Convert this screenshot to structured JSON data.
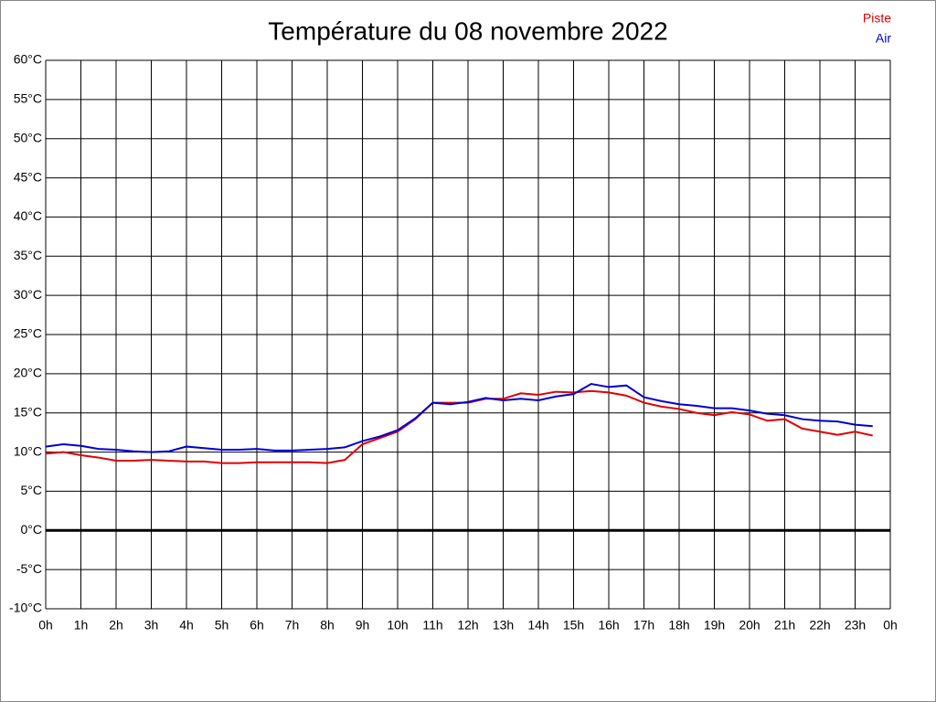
{
  "chart_data": {
    "type": "line",
    "title": "Température du 08 novembre 2022",
    "x": [
      0,
      0.5,
      1,
      1.5,
      2,
      2.5,
      3,
      3.5,
      4,
      4.5,
      5,
      5.5,
      6,
      6.5,
      7,
      7.5,
      8,
      8.5,
      9,
      9.5,
      10,
      10.5,
      11,
      11.5,
      12,
      12.5,
      13,
      13.5,
      14,
      14.5,
      15,
      15.5,
      16,
      16.5,
      17,
      17.5,
      18,
      18.5,
      19,
      19.5,
      20,
      20.5,
      21,
      21.5,
      22,
      22.5,
      23,
      23.5
    ],
    "series": [
      {
        "name": "Piste",
        "color": "#e00000",
        "values": [
          9.8,
          10.0,
          9.6,
          9.3,
          8.9,
          8.9,
          9.0,
          8.9,
          8.8,
          8.8,
          8.6,
          8.6,
          8.7,
          8.7,
          8.7,
          8.7,
          8.6,
          9.0,
          11.0,
          11.8,
          12.6,
          14.2,
          16.3,
          16.3,
          16.3,
          16.8,
          16.8,
          17.5,
          17.3,
          17.7,
          17.6,
          17.8,
          17.6,
          17.2,
          16.3,
          15.8,
          15.5,
          15.0,
          14.7,
          15.1,
          14.8,
          14.0,
          14.2,
          13.0,
          12.6,
          12.2,
          12.6,
          12.1
        ]
      },
      {
        "name": "Air",
        "color": "#0000d0",
        "values": [
          10.7,
          11.0,
          10.8,
          10.4,
          10.3,
          10.1,
          10.0,
          10.1,
          10.7,
          10.5,
          10.3,
          10.3,
          10.4,
          10.2,
          10.2,
          10.3,
          10.4,
          10.6,
          11.4,
          12.0,
          12.8,
          14.3,
          16.3,
          16.1,
          16.4,
          16.9,
          16.6,
          16.8,
          16.6,
          17.1,
          17.4,
          18.7,
          18.3,
          18.5,
          17.0,
          16.5,
          16.1,
          15.9,
          15.6,
          15.6,
          15.3,
          14.9,
          14.7,
          14.2,
          14.0,
          13.9,
          13.5,
          13.3
        ]
      }
    ],
    "xlim": [
      0,
      24
    ],
    "xticks": [
      {
        "value": 0,
        "label": "0h"
      },
      {
        "value": 1,
        "label": "1h"
      },
      {
        "value": 2,
        "label": "2h"
      },
      {
        "value": 3,
        "label": "3h"
      },
      {
        "value": 4,
        "label": "4h"
      },
      {
        "value": 5,
        "label": "5h"
      },
      {
        "value": 6,
        "label": "6h"
      },
      {
        "value": 7,
        "label": "7h"
      },
      {
        "value": 8,
        "label": "8h"
      },
      {
        "value": 9,
        "label": "9h"
      },
      {
        "value": 10,
        "label": "10h"
      },
      {
        "value": 11,
        "label": "11h"
      },
      {
        "value": 12,
        "label": "12h"
      },
      {
        "value": 13,
        "label": "13h"
      },
      {
        "value": 14,
        "label": "14h"
      },
      {
        "value": 15,
        "label": "15h"
      },
      {
        "value": 16,
        "label": "16h"
      },
      {
        "value": 17,
        "label": "17h"
      },
      {
        "value": 18,
        "label": "18h"
      },
      {
        "value": 19,
        "label": "19h"
      },
      {
        "value": 20,
        "label": "20h"
      },
      {
        "value": 21,
        "label": "21h"
      },
      {
        "value": 22,
        "label": "22h"
      },
      {
        "value": 23,
        "label": "23h"
      },
      {
        "value": 24,
        "label": "0h"
      }
    ],
    "ylim": [
      -10,
      60
    ],
    "yticks": [
      {
        "value": -10,
        "label": "-10°C"
      },
      {
        "value": -5,
        "label": "-5°C"
      },
      {
        "value": 0,
        "label": "0°C"
      },
      {
        "value": 5,
        "label": "5°C"
      },
      {
        "value": 10,
        "label": "10°C"
      },
      {
        "value": 15,
        "label": "15°C"
      },
      {
        "value": 20,
        "label": "20°C"
      },
      {
        "value": 25,
        "label": "25°C"
      },
      {
        "value": 30,
        "label": "30°C"
      },
      {
        "value": 35,
        "label": "35°C"
      },
      {
        "value": 40,
        "label": "40°C"
      },
      {
        "value": 45,
        "label": "45°C"
      },
      {
        "value": 50,
        "label": "50°C"
      },
      {
        "value": 55,
        "label": "55°C"
      },
      {
        "value": 60,
        "label": "60°C"
      }
    ],
    "grid": true,
    "legend": "top-right"
  }
}
